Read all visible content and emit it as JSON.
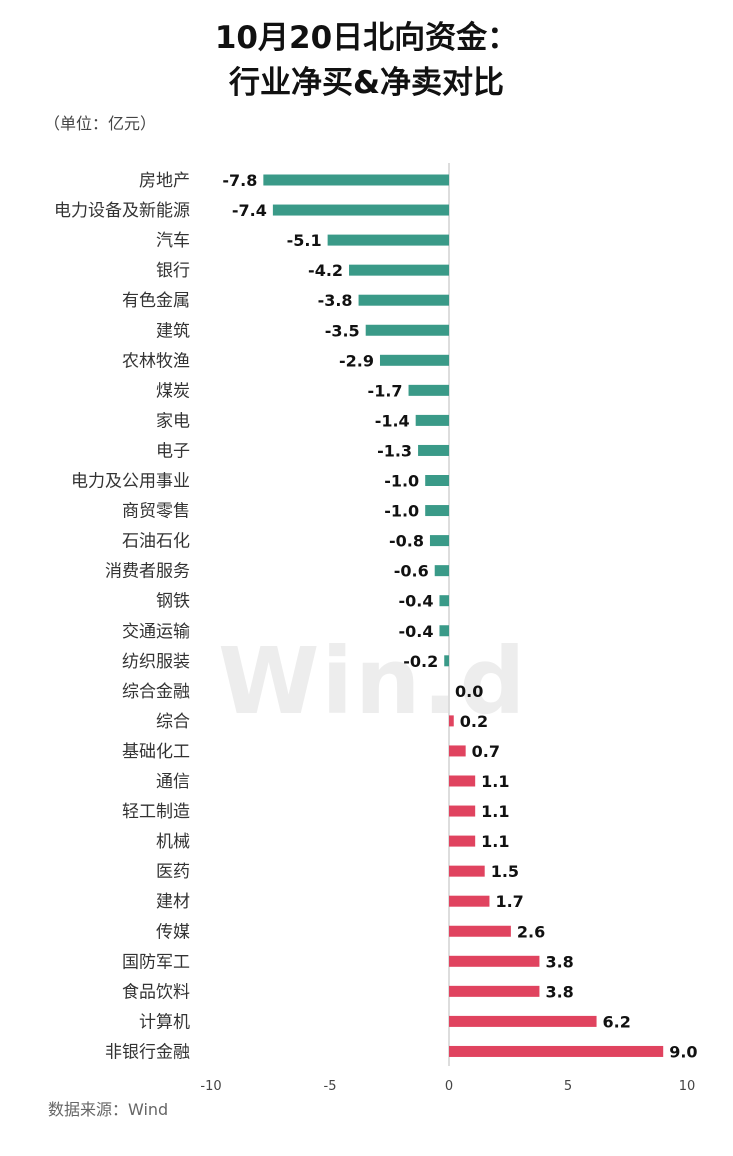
{
  "title_line1": "10月20日北向资金：",
  "title_line2": "行业净买&净卖对比",
  "unit": "（单位：亿元）",
  "source": "数据来源：Wind",
  "watermark": "Win.d",
  "colors": {
    "negative": "#3a9a88",
    "positive": "#e0435f",
    "axis": "#bbbbbb"
  },
  "chart_data": {
    "type": "bar",
    "orientation": "horizontal",
    "categories": [
      "房地产",
      "电力设备及新能源",
      "汽车",
      "银行",
      "有色金属",
      "建筑",
      "农林牧渔",
      "煤炭",
      "家电",
      "电子",
      "电力及公用事业",
      "商贸零售",
      "石油石化",
      "消费者服务",
      "钢铁",
      "交通运输",
      "纺织服装",
      "综合金融",
      "综合",
      "基础化工",
      "通信",
      "轻工制造",
      "机械",
      "医药",
      "建材",
      "传媒",
      "国防军工",
      "食品饮料",
      "计算机",
      "非银行金融"
    ],
    "values": [
      -7.8,
      -7.4,
      -5.1,
      -4.2,
      -3.8,
      -3.5,
      -2.9,
      -1.7,
      -1.4,
      -1.3,
      -1.0,
      -1.0,
      -0.8,
      -0.6,
      -0.4,
      -0.4,
      -0.2,
      0.0,
      0.2,
      0.7,
      1.1,
      1.1,
      1.1,
      1.5,
      1.7,
      2.6,
      3.8,
      3.8,
      6.2,
      9.0
    ],
    "value_labels": [
      "-7.8",
      "-7.4",
      "-5.1",
      "-4.2",
      "-3.8",
      "-3.5",
      "-2.9",
      "-1.7",
      "-1.4",
      "-1.3",
      "-1.0",
      "-1.0",
      "-0.8",
      "-0.6",
      "-0.4",
      "-0.4",
      "-0.2",
      "0.0",
      "0.2",
      "0.7",
      "1.1",
      "1.1",
      "1.1",
      "1.5",
      "1.7",
      "2.6",
      "3.8",
      "3.8",
      "6.2",
      "9.0"
    ],
    "xlim": [
      -10,
      10
    ],
    "xticks": [
      -10,
      -5,
      0,
      5,
      10
    ],
    "xtick_labels": [
      "-10",
      "-5",
      "0",
      "5",
      "10"
    ],
    "grid": false,
    "legend": "none"
  }
}
